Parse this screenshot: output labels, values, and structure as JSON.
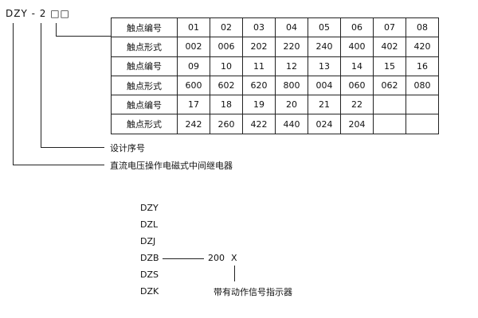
{
  "model_code": "DZY - 2 □□",
  "table": {
    "rows": [
      {
        "label": "触点编号",
        "values": [
          "01",
          "02",
          "03",
          "04",
          "05",
          "06",
          "07",
          "08"
        ]
      },
      {
        "label": "触点形式",
        "values": [
          "002",
          "006",
          "202",
          "220",
          "240",
          "400",
          "402",
          "420"
        ]
      },
      {
        "label": "触点编号",
        "values": [
          "09",
          "10",
          "11",
          "12",
          "13",
          "14",
          "15",
          "16"
        ]
      },
      {
        "label": "触点形式",
        "values": [
          "600",
          "602",
          "620",
          "800",
          "004",
          "060",
          "062",
          "080"
        ]
      },
      {
        "label": "触点编号",
        "values": [
          "17",
          "18",
          "19",
          "20",
          "21",
          "22",
          "",
          ""
        ]
      },
      {
        "label": "触点形式",
        "values": [
          "242",
          "260",
          "422",
          "440",
          "024",
          "204",
          "",
          ""
        ]
      }
    ]
  },
  "design_serial_label": "设计序号",
  "relay_type_label": "直流电压操作电磁式中间继电器",
  "series": [
    "DZY",
    "DZL",
    "DZJ",
    "DZB",
    "DZS",
    "DZK"
  ],
  "suffix_code": "200",
  "suffix_x": "X",
  "indicator_label": "带有动作信号指示器"
}
